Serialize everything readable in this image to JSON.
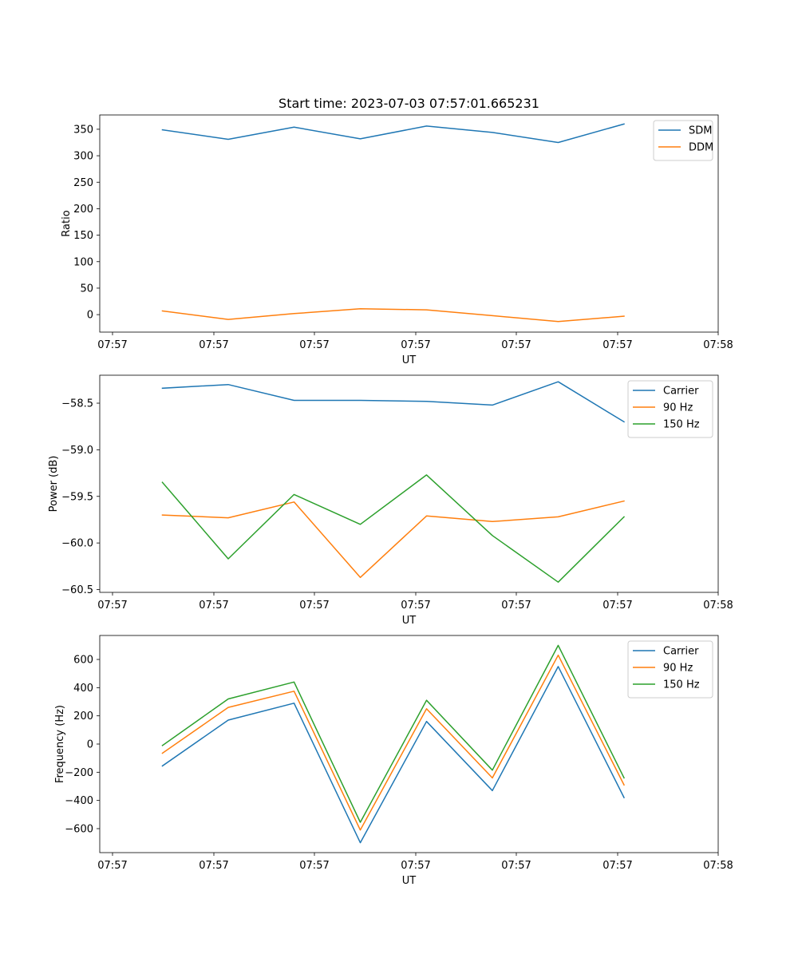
{
  "chart_data": [
    {
      "type": "line",
      "title": "Start time: 2023-07-03 07:57:01.665231",
      "xlabel": "UT",
      "ylabel": "Ratio",
      "x_tick_labels": [
        "07:57",
        "07:57",
        "07:57",
        "07:57",
        "07:57",
        "07:57",
        "07:57"
      ],
      "x_last_tick_label": "07:58",
      "y_ticks": [
        0,
        50,
        100,
        150,
        200,
        250,
        300,
        350
      ],
      "y_tick_labels": [
        "0",
        "50",
        "100",
        "150",
        "200",
        "250",
        "300",
        "350"
      ],
      "ylim": [
        -33,
        377
      ],
      "legend_position": "upper right",
      "series": [
        {
          "name": "SDM",
          "color": "#1f77b4",
          "values": [
            349,
            331,
            354,
            332,
            356,
            344,
            325,
            360
          ]
        },
        {
          "name": "DDM",
          "color": "#ff7f0e",
          "values": [
            7,
            -9,
            2,
            11,
            9,
            -2,
            -13,
            -3
          ]
        }
      ]
    },
    {
      "type": "line",
      "title": "",
      "xlabel": "UT",
      "ylabel": "Power (dB)",
      "x_tick_labels": [
        "07:57",
        "07:57",
        "07:57",
        "07:57",
        "07:57",
        "07:57",
        "07:57"
      ],
      "x_last_tick_label": "07:58",
      "y_ticks": [
        -58.5,
        -59.0,
        -59.5,
        -60.0,
        -60.5
      ],
      "y_tick_labels": [
        "−58.5",
        "−59.0",
        "−59.5",
        "−60.0",
        "−60.5"
      ],
      "ylim": [
        -60.53,
        -58.2
      ],
      "legend_position": "upper right",
      "series": [
        {
          "name": "Carrier",
          "color": "#1f77b4",
          "values": [
            -58.34,
            -58.3,
            -58.47,
            -58.47,
            -58.48,
            -58.52,
            -58.27,
            -58.7
          ]
        },
        {
          "name": "90 Hz",
          "color": "#ff7f0e",
          "values": [
            -59.7,
            -59.73,
            -59.56,
            -60.37,
            -59.71,
            -59.77,
            -59.72,
            -59.55
          ]
        },
        {
          "name": "150 Hz",
          "color": "#2ca02c",
          "values": [
            -59.35,
            -60.17,
            -59.48,
            -59.8,
            -59.27,
            -59.92,
            -60.42,
            -59.72
          ]
        }
      ]
    },
    {
      "type": "line",
      "title": "",
      "xlabel": "UT",
      "ylabel": "Frequency (Hz)",
      "x_tick_labels": [
        "07:57",
        "07:57",
        "07:57",
        "07:57",
        "07:57",
        "07:57",
        "07:57"
      ],
      "x_last_tick_label": "07:58",
      "y_ticks": [
        -600,
        -400,
        -200,
        0,
        200,
        400,
        600
      ],
      "y_tick_labels": [
        "−600",
        "−400",
        "−200",
        "0",
        "200",
        "400",
        "600"
      ],
      "ylim": [
        -770,
        770
      ],
      "legend_position": "upper right",
      "series": [
        {
          "name": "Carrier",
          "color": "#1f77b4",
          "values": [
            -155,
            170,
            290,
            -700,
            160,
            -330,
            550,
            -380
          ]
        },
        {
          "name": "90 Hz",
          "color": "#ff7f0e",
          "values": [
            -65,
            260,
            375,
            -610,
            250,
            -240,
            630,
            -290
          ]
        },
        {
          "name": "150 Hz",
          "color": "#2ca02c",
          "values": [
            -10,
            320,
            440,
            -555,
            310,
            -185,
            700,
            -240
          ]
        }
      ]
    }
  ]
}
